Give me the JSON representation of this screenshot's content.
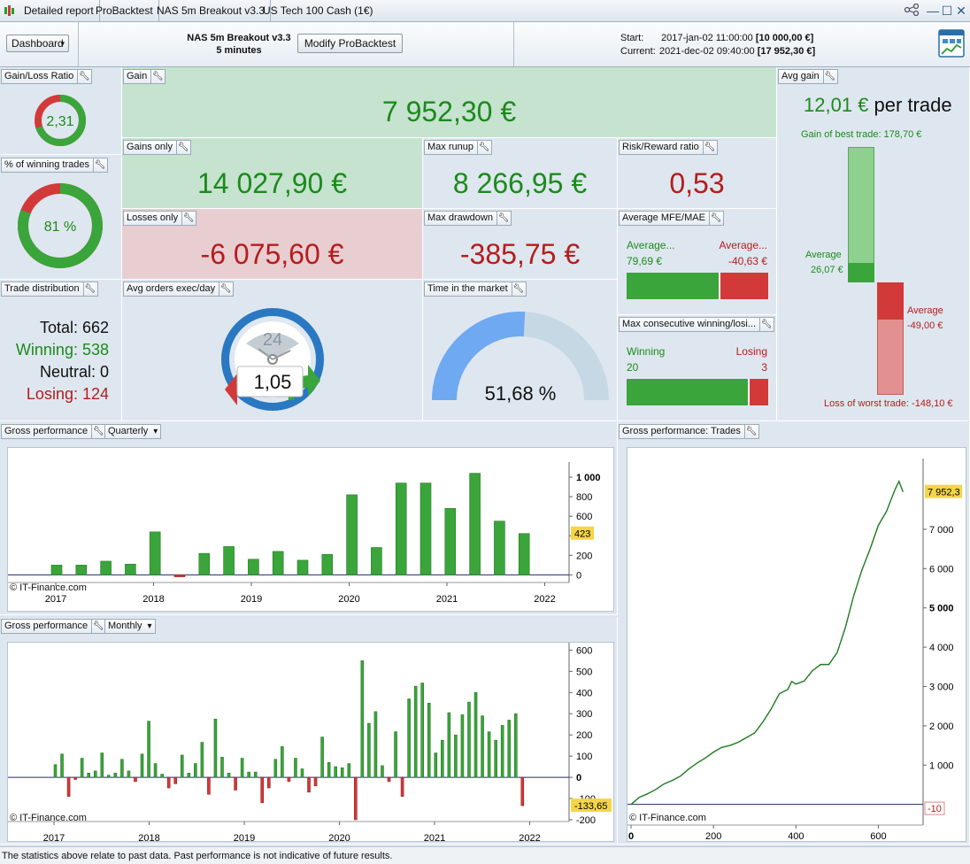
{
  "titlebar": {
    "tabs": [
      "Detailed report",
      "ProBacktest",
      "NAS 5m Breakout v3.3",
      "US Tech 100 Cash (1€)"
    ]
  },
  "header": {
    "dashboard_label": "Dashboard",
    "strategy_name": "NAS 5m Breakout v3.3",
    "timeframe": "5 minutes",
    "modify_label": "Modify ProBacktest",
    "start_label": "Start:",
    "start_date": "2017-jan-02 11:00:00",
    "start_value": "[10 000,00 €]",
    "current_label": "Current:",
    "current_date": "2021-dec-02 09:40:00",
    "current_value": "[17 952,30 €]"
  },
  "panels": {
    "gain_loss_ratio": {
      "title": "Gain/Loss Ratio",
      "value": "2,31",
      "fraction": 0.7
    },
    "gain": {
      "title": "Gain",
      "value": "7 952,30 €"
    },
    "avg_gain": {
      "title": "Avg gain",
      "value": "12,01 €",
      "suffix": "per trade",
      "best_label": "Gain of best trade: 178,70 €",
      "avg_pos_label": "Average",
      "avg_pos_value": "26,07 €",
      "avg_neg_label": "Average",
      "avg_neg_value": "-49,00 €",
      "worst_label": "Loss of worst trade: -148,10 €",
      "best": 178.7,
      "avg_pos": 26.07,
      "avg_neg": -49.0,
      "worst": -148.1
    },
    "winning_trades": {
      "title": "% of winning trades",
      "value": "81 %",
      "fraction": 0.81
    },
    "gains_only": {
      "title": "Gains only",
      "value": "14 027,90 €"
    },
    "max_runup": {
      "title": "Max runup",
      "value": "8 266,95 €"
    },
    "risk_reward": {
      "title": "Risk/Reward ratio",
      "value": "0,53"
    },
    "losses_only": {
      "title": "Losses only",
      "value": "-6 075,60 €"
    },
    "max_drawdown": {
      "title": "Max drawdown",
      "value": "-385,75 €"
    },
    "avg_mfe_mae": {
      "title": "Average MFE/MAE",
      "left_label": "Average...",
      "left_value": "79,69 €",
      "right_label": "Average...",
      "right_value": "-40,63 €",
      "left_fraction": 0.66
    },
    "trade_distribution": {
      "title": "Trade distribution",
      "total": "Total: 662",
      "winning": "Winning: 538",
      "neutral": "Neutral: 0",
      "losing": "Losing: 124"
    },
    "avg_orders": {
      "title": "Avg orders exec/day",
      "value": "1,05",
      "dial": "24"
    },
    "time_in_market": {
      "title": "Time in the market",
      "value": "51,68 %",
      "fraction": 0.5168
    },
    "max_consecutive": {
      "title": "Max consecutive winning/losi...",
      "win_label": "Winning",
      "win_value": "20",
      "lose_label": "Losing",
      "lose_value": "3",
      "win_fraction": 0.87
    }
  },
  "gross_quarterly": {
    "title": "Gross performance",
    "period": "Quarterly",
    "watermark": "© IT-Finance.com",
    "last_badge": "423"
  },
  "gross_monthly": {
    "title": "Gross performance",
    "period": "Monthly",
    "watermark": "© IT-Finance.com",
    "last_badge": "-133,65"
  },
  "gross_trades": {
    "title": "Gross performance: Trades",
    "watermark": "© IT-Finance.com",
    "last_badge": "7 952,3",
    "low_badge": "-10"
  },
  "footer": {
    "text": "The statistics above relate to past data. Past performance is not indicative of future results."
  },
  "colors": {
    "green": "#1b8a1b",
    "red": "#b51c1c",
    "bar_green": "#3aa53a",
    "bar_red": "#d23a3a",
    "badge": "#f5d547"
  },
  "chart_data": [
    {
      "type": "bar",
      "title": "Gross performance",
      "categories": [
        "2017 Q1",
        "2017 Q2",
        "2017 Q3",
        "2017 Q4",
        "2018 Q1",
        "2018 Q2",
        "2018 Q3",
        "2018 Q4",
        "2019 Q1",
        "2019 Q2",
        "2019 Q3",
        "2019 Q4",
        "2020 Q1",
        "2020 Q2",
        "2020 Q3",
        "2020 Q4",
        "2021 Q1",
        "2021 Q2",
        "2021 Q3",
        "2021 Q4"
      ],
      "values": [
        100,
        100,
        140,
        110,
        440,
        -20,
        220,
        290,
        160,
        240,
        150,
        210,
        820,
        280,
        940,
        940,
        680,
        1040,
        550,
        423
      ],
      "x_ticks": [
        "2017",
        "2018",
        "2019",
        "2020",
        "2021",
        "2022"
      ],
      "y_ticks": [
        "0",
        "200",
        "400",
        "600",
        "800",
        "1 000"
      ],
      "ylim": [
        -60,
        1100
      ]
    },
    {
      "type": "bar",
      "title": "Gross performance",
      "values": [
        60,
        110,
        -90,
        -10,
        90,
        20,
        30,
        115,
        10,
        20,
        85,
        30,
        -20,
        110,
        265,
        65,
        15,
        -50,
        -30,
        105,
        20,
        65,
        165,
        -80,
        275,
        95,
        20,
        -60,
        90,
        25,
        25,
        -120,
        -50,
        85,
        145,
        -20,
        90,
        40,
        -70,
        -40,
        190,
        70,
        50,
        45,
        65,
        -200,
        550,
        255,
        310,
        55,
        -20,
        215,
        -90,
        370,
        430,
        445,
        350,
        115,
        175,
        305,
        200,
        295,
        355,
        400,
        290,
        215,
        175,
        245,
        270,
        300,
        -133.65
      ],
      "x_ticks": [
        "2017",
        "2018",
        "2019",
        "2020",
        "2021",
        "2022"
      ],
      "y_ticks": [
        "-200",
        "-100",
        "0",
        "100",
        "200",
        "300",
        "400",
        "500",
        "600"
      ],
      "ylim": [
        -200,
        610
      ]
    },
    {
      "type": "line",
      "title": "Gross performance: Trades",
      "x": [
        0,
        20,
        40,
        60,
        80,
        100,
        120,
        140,
        160,
        180,
        200,
        220,
        240,
        260,
        280,
        300,
        320,
        340,
        360,
        380,
        390,
        400,
        420,
        440,
        460,
        480,
        500,
        520,
        540,
        560,
        580,
        600,
        620,
        640,
        650,
        660
      ],
      "y": [
        0,
        180,
        270,
        380,
        520,
        610,
        720,
        900,
        1050,
        1180,
        1330,
        1450,
        1500,
        1580,
        1700,
        1820,
        2100,
        2430,
        2820,
        2920,
        3130,
        3060,
        3140,
        3400,
        3560,
        3560,
        3860,
        4500,
        5300,
        5960,
        6500,
        7100,
        7460,
        8000,
        8220,
        7952.3
      ],
      "x_ticks": [
        "0",
        "200",
        "400",
        "600"
      ],
      "y_ticks": [
        "1 000",
        "2 000",
        "3 000",
        "4 000",
        "5 000",
        "6 000",
        "7 000"
      ],
      "xlim": [
        0,
        700
      ],
      "ylim": [
        -300,
        8800
      ]
    }
  ]
}
